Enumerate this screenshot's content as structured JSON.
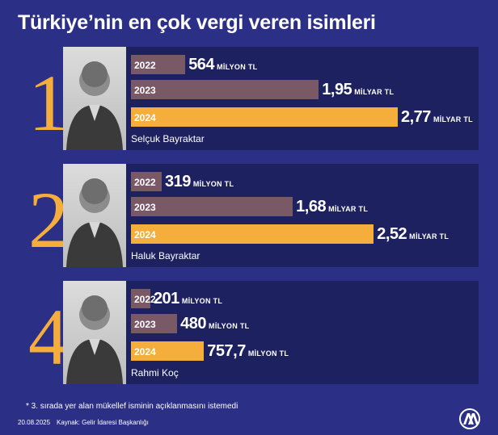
{
  "title": "Türkiye’nin en çok vergi veren isimleri",
  "colors": {
    "background": "#2b2f85",
    "panel": "#1e2160",
    "bar_2022": "#7a5967",
    "bar_2023": "#7a5967",
    "bar_2024": "#f5ae3c",
    "rank": "#f5ae3c"
  },
  "chart_data": {
    "type": "bar",
    "orientation": "horizontal",
    "categories": [
      "2022",
      "2023",
      "2024"
    ],
    "unit_note": "values in million TL",
    "entries": [
      {
        "rank": "1",
        "name": "Selçuk Bayraktar",
        "photo_icon": "portrait-photo",
        "bars": [
          {
            "year": "2022",
            "value": 564,
            "num": "564",
            "unit": "MİLYON TL"
          },
          {
            "year": "2023",
            "value": 1950,
            "num": "1,95",
            "unit": "MİLYAR TL"
          },
          {
            "year": "2024",
            "value": 2770,
            "num": "2,77",
            "unit": "MİLYAR TL"
          }
        ]
      },
      {
        "rank": "2",
        "name": "Haluk Bayraktar",
        "photo_icon": "portrait-photo",
        "bars": [
          {
            "year": "2022",
            "value": 319,
            "num": "319",
            "unit": "MİLYON TL"
          },
          {
            "year": "2023",
            "value": 1680,
            "num": "1,68",
            "unit": "MİLYAR TL"
          },
          {
            "year": "2024",
            "value": 2520,
            "num": "2,52",
            "unit": "MİLYAR TL"
          }
        ]
      },
      {
        "rank": "4",
        "name": "Rahmi Koç",
        "photo_icon": "portrait-photo",
        "bars": [
          {
            "year": "2022",
            "value": 201,
            "num": "201",
            "unit": "MİLYON TL"
          },
          {
            "year": "2023",
            "value": 480,
            "num": "480",
            "unit": "MİLYON TL"
          },
          {
            "year": "2024",
            "value": 757.7,
            "num": "757,7",
            "unit": "MİLYON TL"
          }
        ]
      }
    ]
  },
  "footnote": "*   3. sırada yer alan mükellef isminin açıklanmasını istemedi",
  "date": "20.08.2025",
  "source": "Kaynak: Gelir İdaresi Başkanlığı",
  "logo_icon": "aa-logo-icon"
}
